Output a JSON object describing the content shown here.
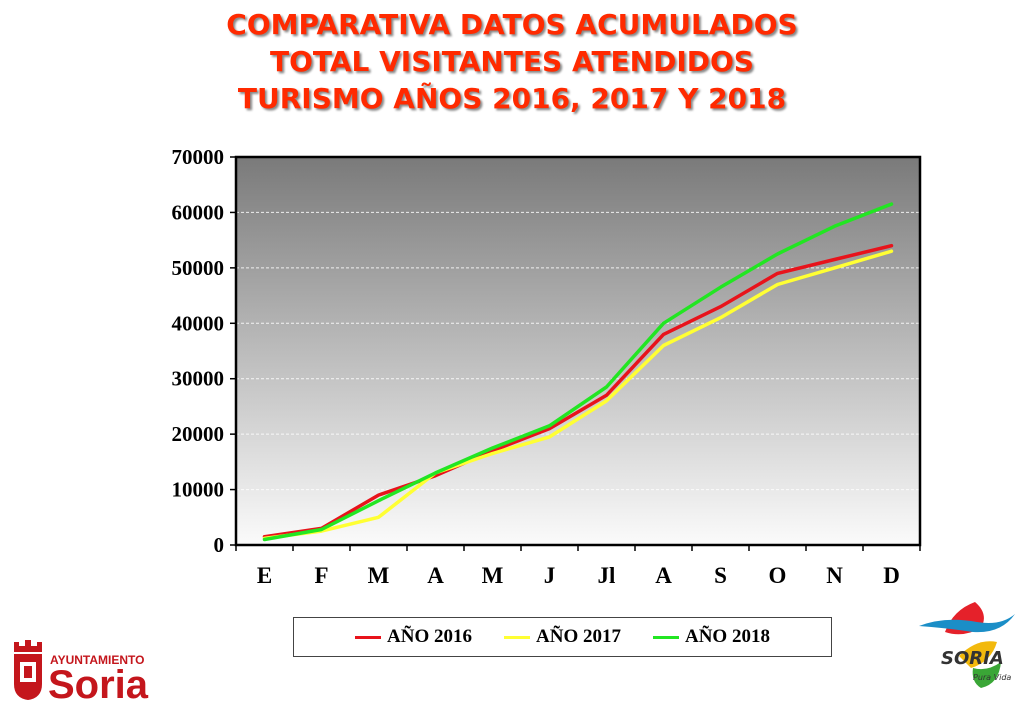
{
  "title_lines": [
    "COMPARATIVA DATOS ACUMULADOS",
    "TOTAL VISITANTES ATENDIDOS",
    "TURISMO AÑOS 2016, 2017 Y 2018"
  ],
  "colors": {
    "title": "#ff2a00",
    "s2016": "#e8131b",
    "s2017": "#ffff33",
    "s2018": "#22e622"
  },
  "chart_data": {
    "type": "line",
    "title": "COMPARATIVA DATOS ACUMULADOS TOTAL VISITANTES ATENDIDOS TURISMO AÑOS 2016, 2017 Y 2018",
    "categories": [
      "E",
      "F",
      "M",
      "A",
      "M",
      "J",
      "Jl",
      "A",
      "S",
      "O",
      "N",
      "D"
    ],
    "ylim": [
      0,
      70000
    ],
    "yticks": [
      "0",
      "10000",
      "20000",
      "30000",
      "40000",
      "50000",
      "60000",
      "70000"
    ],
    "grid": true,
    "legend_position": "bottom",
    "series": [
      {
        "name": "AÑO 2016",
        "color": "#e8131b",
        "values": [
          1500,
          3000,
          9000,
          12500,
          17000,
          21000,
          27000,
          38000,
          43000,
          49000,
          51500,
          54000
        ]
      },
      {
        "name": "AÑO 2017",
        "color": "#ffff33",
        "values": [
          1200,
          2500,
          5000,
          13000,
          16500,
          19500,
          26000,
          36000,
          41000,
          47000,
          50000,
          53000
        ]
      },
      {
        "name": "AÑO 2018",
        "color": "#22e622",
        "values": [
          1000,
          2800,
          8000,
          13000,
          17500,
          21500,
          28500,
          40000,
          46500,
          52500,
          57500,
          61500
        ]
      }
    ]
  },
  "logos": {
    "ayuntamiento_top": "AYUNTAMIENTO",
    "ayuntamiento_name": "Soria",
    "soria_brand": "SORIA",
    "soria_tagline": "Pura Vida"
  }
}
